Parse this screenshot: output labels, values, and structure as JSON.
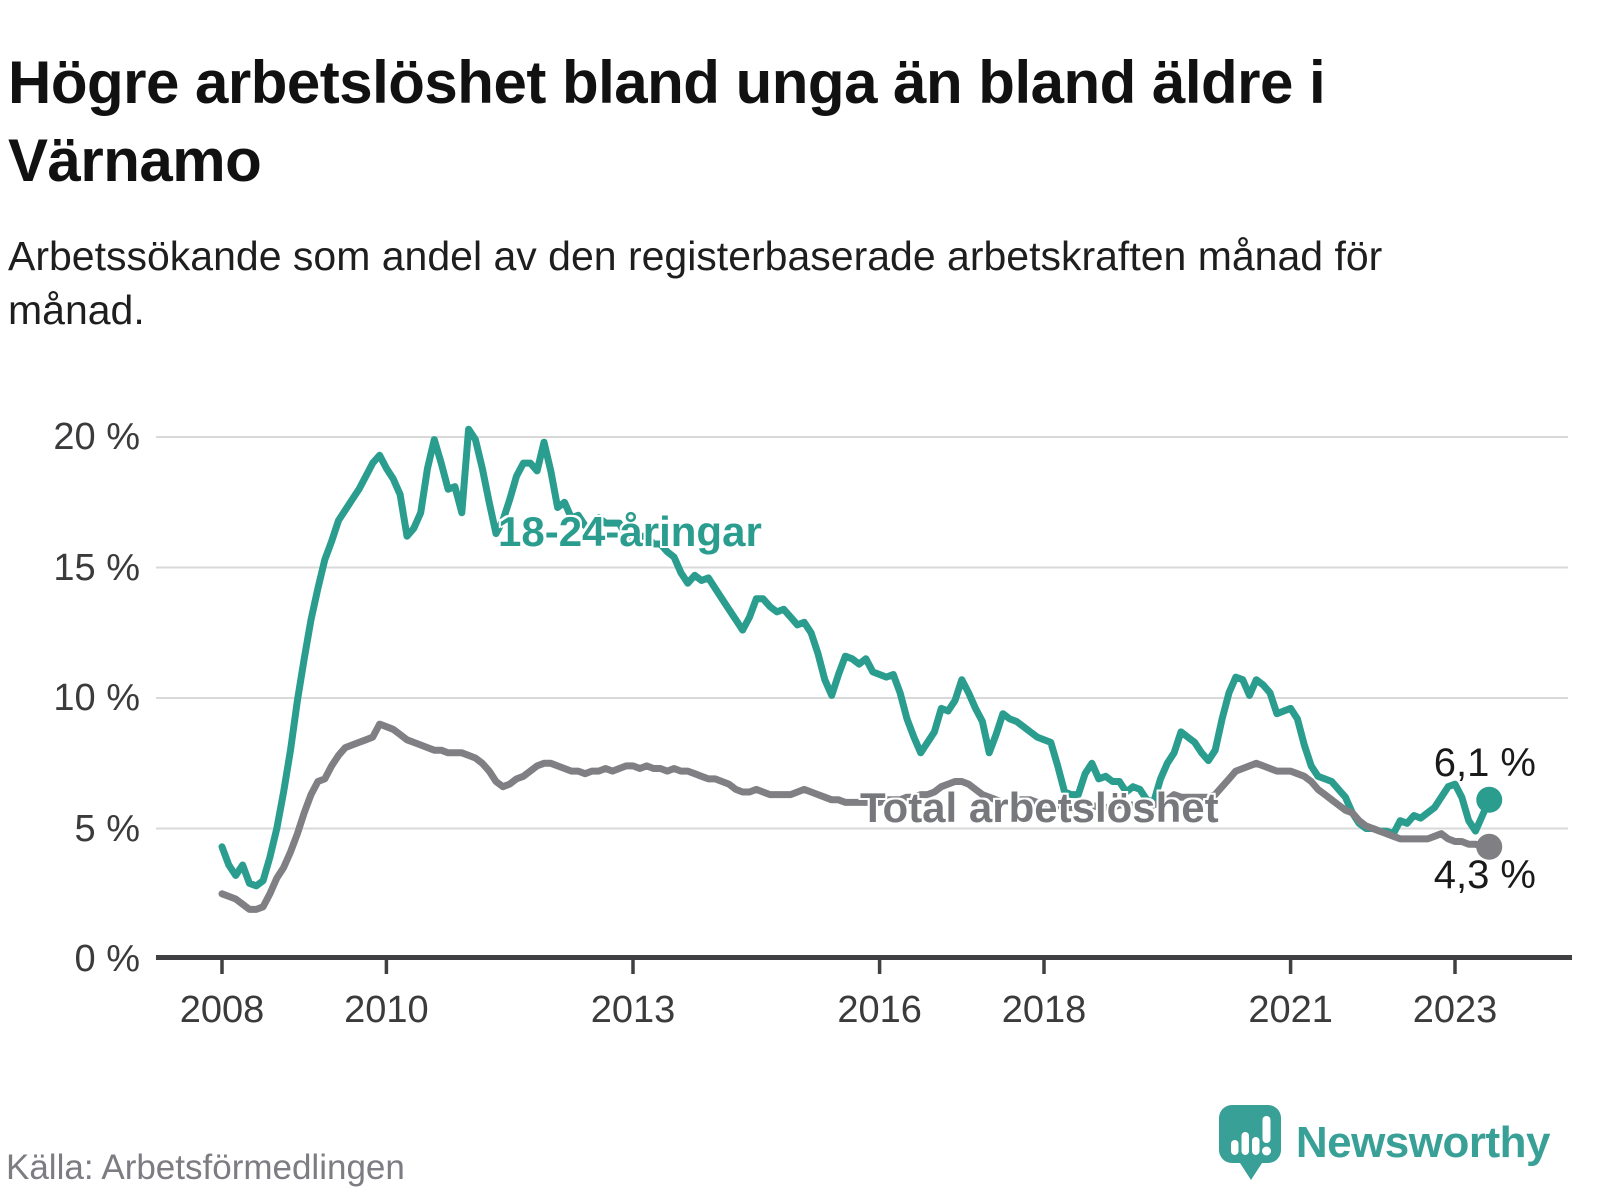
{
  "header": {
    "title": "Högre arbetslöshet bland unga än bland äldre i Värnamo",
    "subtitle": "Arbetssökande som andel av den registerbaserade arbetskraften månad för månad."
  },
  "chart_data": {
    "type": "line",
    "title": "Högre arbetslöshet bland unga än bland äldre i Värnamo",
    "unit": "%",
    "grid": "horizontal-only",
    "legend_position": "inline-labels",
    "x_start_year": 2008,
    "x_start_month": 1,
    "x_end_year": 2023,
    "x_end_month": 6,
    "x_tick_years": [
      2008,
      2010,
      2013,
      2016,
      2018,
      2021,
      2023
    ],
    "x_tick_labels": [
      "2008",
      "2010",
      "2013",
      "2016",
      "2018",
      "2021",
      "2023"
    ],
    "y_ticks": [
      0,
      5,
      10,
      15,
      20
    ],
    "y_tick_labels": [
      "0 %",
      "5 %",
      "10 %",
      "15 %",
      "20 %"
    ],
    "ylim": [
      0,
      21
    ],
    "series": [
      {
        "name": "18-24-åringar",
        "color": "#2a9d8f",
        "end_value": 6.1,
        "end_label": "6,1 %",
        "values": [
          4.3,
          3.6,
          3.2,
          3.6,
          2.9,
          2.8,
          3.0,
          3.9,
          5.0,
          6.4,
          8.0,
          9.9,
          11.5,
          13.0,
          14.2,
          15.3,
          16.0,
          16.8,
          17.2,
          17.6,
          18.0,
          18.5,
          19.0,
          19.3,
          18.8,
          18.4,
          17.8,
          16.2,
          16.5,
          17.1,
          18.8,
          19.9,
          19.0,
          18.0,
          18.1,
          17.1,
          20.3,
          19.9,
          18.8,
          17.5,
          16.3,
          16.8,
          17.6,
          18.5,
          19.0,
          19.0,
          18.7,
          19.8,
          18.7,
          17.3,
          17.5,
          16.9,
          17.0,
          16.6,
          16.5,
          16.9,
          16.7,
          16.7,
          16.7,
          16.2,
          16.0,
          16.2,
          16.2,
          15.9,
          15.9,
          15.6,
          15.4,
          14.8,
          14.4,
          14.7,
          14.5,
          14.6,
          14.2,
          13.8,
          13.4,
          13.0,
          12.6,
          13.1,
          13.8,
          13.8,
          13.5,
          13.3,
          13.4,
          13.1,
          12.8,
          12.9,
          12.5,
          11.7,
          10.7,
          10.1,
          10.9,
          11.6,
          11.5,
          11.3,
          11.5,
          11.0,
          10.9,
          10.8,
          10.9,
          10.2,
          9.2,
          8.5,
          7.9,
          8.3,
          8.7,
          9.6,
          9.5,
          9.9,
          10.7,
          10.2,
          9.6,
          9.1,
          7.9,
          8.6,
          9.4,
          9.2,
          9.1,
          8.9,
          8.7,
          8.5,
          8.4,
          8.3,
          7.4,
          6.4,
          6.3,
          6.3,
          7.1,
          7.5,
          6.9,
          7.0,
          6.8,
          6.8,
          6.4,
          6.6,
          6.5,
          6.1,
          6.0,
          6.9,
          7.5,
          7.9,
          8.7,
          8.5,
          8.3,
          7.9,
          7.6,
          8.0,
          9.2,
          10.2,
          10.8,
          10.7,
          10.1,
          10.7,
          10.5,
          10.2,
          9.4,
          9.5,
          9.6,
          9.2,
          8.2,
          7.4,
          7.0,
          6.9,
          6.8,
          6.5,
          6.2,
          5.6,
          5.2,
          5.0,
          5.0,
          4.9,
          4.9,
          4.8,
          5.3,
          5.2,
          5.5,
          5.4,
          5.6,
          5.8,
          6.2,
          6.6,
          6.7,
          6.2,
          5.3,
          4.9,
          5.5,
          6.1
        ]
      },
      {
        "name": "Total arbetslöshet",
        "color": "#808084",
        "end_value": 4.3,
        "end_label": "4,3 %",
        "values": [
          2.5,
          2.4,
          2.3,
          2.1,
          1.9,
          1.9,
          2.0,
          2.5,
          3.1,
          3.5,
          4.1,
          4.8,
          5.6,
          6.3,
          6.8,
          6.9,
          7.4,
          7.8,
          8.1,
          8.2,
          8.3,
          8.4,
          8.5,
          9.0,
          8.9,
          8.8,
          8.6,
          8.4,
          8.3,
          8.2,
          8.1,
          8.0,
          8.0,
          7.9,
          7.9,
          7.9,
          7.8,
          7.7,
          7.5,
          7.2,
          6.8,
          6.6,
          6.7,
          6.9,
          7.0,
          7.2,
          7.4,
          7.5,
          7.5,
          7.4,
          7.3,
          7.2,
          7.2,
          7.1,
          7.2,
          7.2,
          7.3,
          7.2,
          7.3,
          7.4,
          7.4,
          7.3,
          7.4,
          7.3,
          7.3,
          7.2,
          7.3,
          7.2,
          7.2,
          7.1,
          7.0,
          6.9,
          6.9,
          6.8,
          6.7,
          6.5,
          6.4,
          6.4,
          6.5,
          6.4,
          6.3,
          6.3,
          6.3,
          6.3,
          6.4,
          6.5,
          6.4,
          6.3,
          6.2,
          6.1,
          6.1,
          6.0,
          6.0,
          6.0,
          6.0,
          6.0,
          6.0,
          6.1,
          6.1,
          6.1,
          6.2,
          6.2,
          6.3,
          6.3,
          6.4,
          6.6,
          6.7,
          6.8,
          6.8,
          6.7,
          6.5,
          6.3,
          6.2,
          6.1,
          6.0,
          6.0,
          6.1,
          6.1,
          6.1,
          6.0,
          6.0,
          5.9,
          5.9,
          5.8,
          5.8,
          5.8,
          5.8,
          5.9,
          5.8,
          5.8,
          5.8,
          5.9,
          5.9,
          5.9,
          5.9,
          5.9,
          5.9,
          6.0,
          6.1,
          6.3,
          6.2,
          6.2,
          6.2,
          6.2,
          6.2,
          6.3,
          6.6,
          6.9,
          7.2,
          7.3,
          7.4,
          7.5,
          7.4,
          7.3,
          7.2,
          7.2,
          7.2,
          7.1,
          7.0,
          6.8,
          6.5,
          6.3,
          6.1,
          5.9,
          5.7,
          5.6,
          5.3,
          5.1,
          5.0,
          4.9,
          4.8,
          4.7,
          4.6,
          4.6,
          4.6,
          4.6,
          4.6,
          4.7,
          4.8,
          4.6,
          4.5,
          4.5,
          4.4,
          4.4,
          4.3,
          4.3
        ]
      }
    ]
  },
  "footer": {
    "source": "Källa: Arbetsförmedlingen",
    "logo_text": "Newsworthy",
    "logo_color": "#38a096"
  }
}
